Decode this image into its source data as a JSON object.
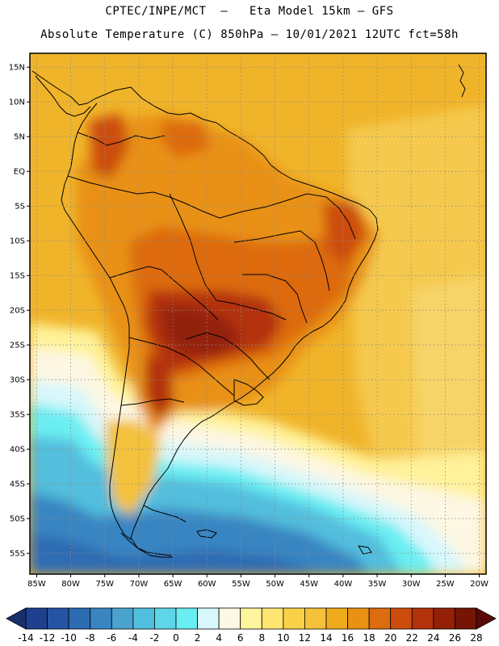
{
  "header": {
    "line1": "CPTEC/INPE/MCT  –   Eta Model 15km – GFS",
    "line2": "Absolute Temperature (C) 850hPa – 10/01/2021 12UTC fct=58h"
  },
  "map": {
    "lon_labels": [
      "85W",
      "80W",
      "75W",
      "70W",
      "65W",
      "60W",
      "55W",
      "50W",
      "45W",
      "40W",
      "35W",
      "30W",
      "25W",
      "20W"
    ],
    "lat_labels": [
      "15N",
      "10N",
      "5N",
      "EQ",
      "5S",
      "10S",
      "15S",
      "20S",
      "25S",
      "30S",
      "35S",
      "40S",
      "45S",
      "50S",
      "55S"
    ],
    "lon_range": [
      -86,
      -19
    ],
    "lat_range": [
      17,
      -58
    ]
  },
  "colorbar": {
    "labels": [
      "-14",
      "-12",
      "-10",
      "-8",
      "-6",
      "-4",
      "-2",
      "0",
      "2",
      "4",
      "6",
      "8",
      "10",
      "12",
      "14",
      "16",
      "18",
      "20",
      "22",
      "24",
      "26",
      "28"
    ],
    "colors": [
      "#1f3f8f",
      "#2653a3",
      "#2d6cb3",
      "#3985c2",
      "#4aa2cf",
      "#52bedd",
      "#5ed6e8",
      "#6aeef2",
      "#d7f7fb",
      "#fdf8e6",
      "#fff59d",
      "#ffe673",
      "#f9d149",
      "#f3c13a",
      "#eeac1d",
      "#e89113",
      "#dd6b0f",
      "#cc4d0b",
      "#b3320a",
      "#932007",
      "#761406"
    ]
  }
}
